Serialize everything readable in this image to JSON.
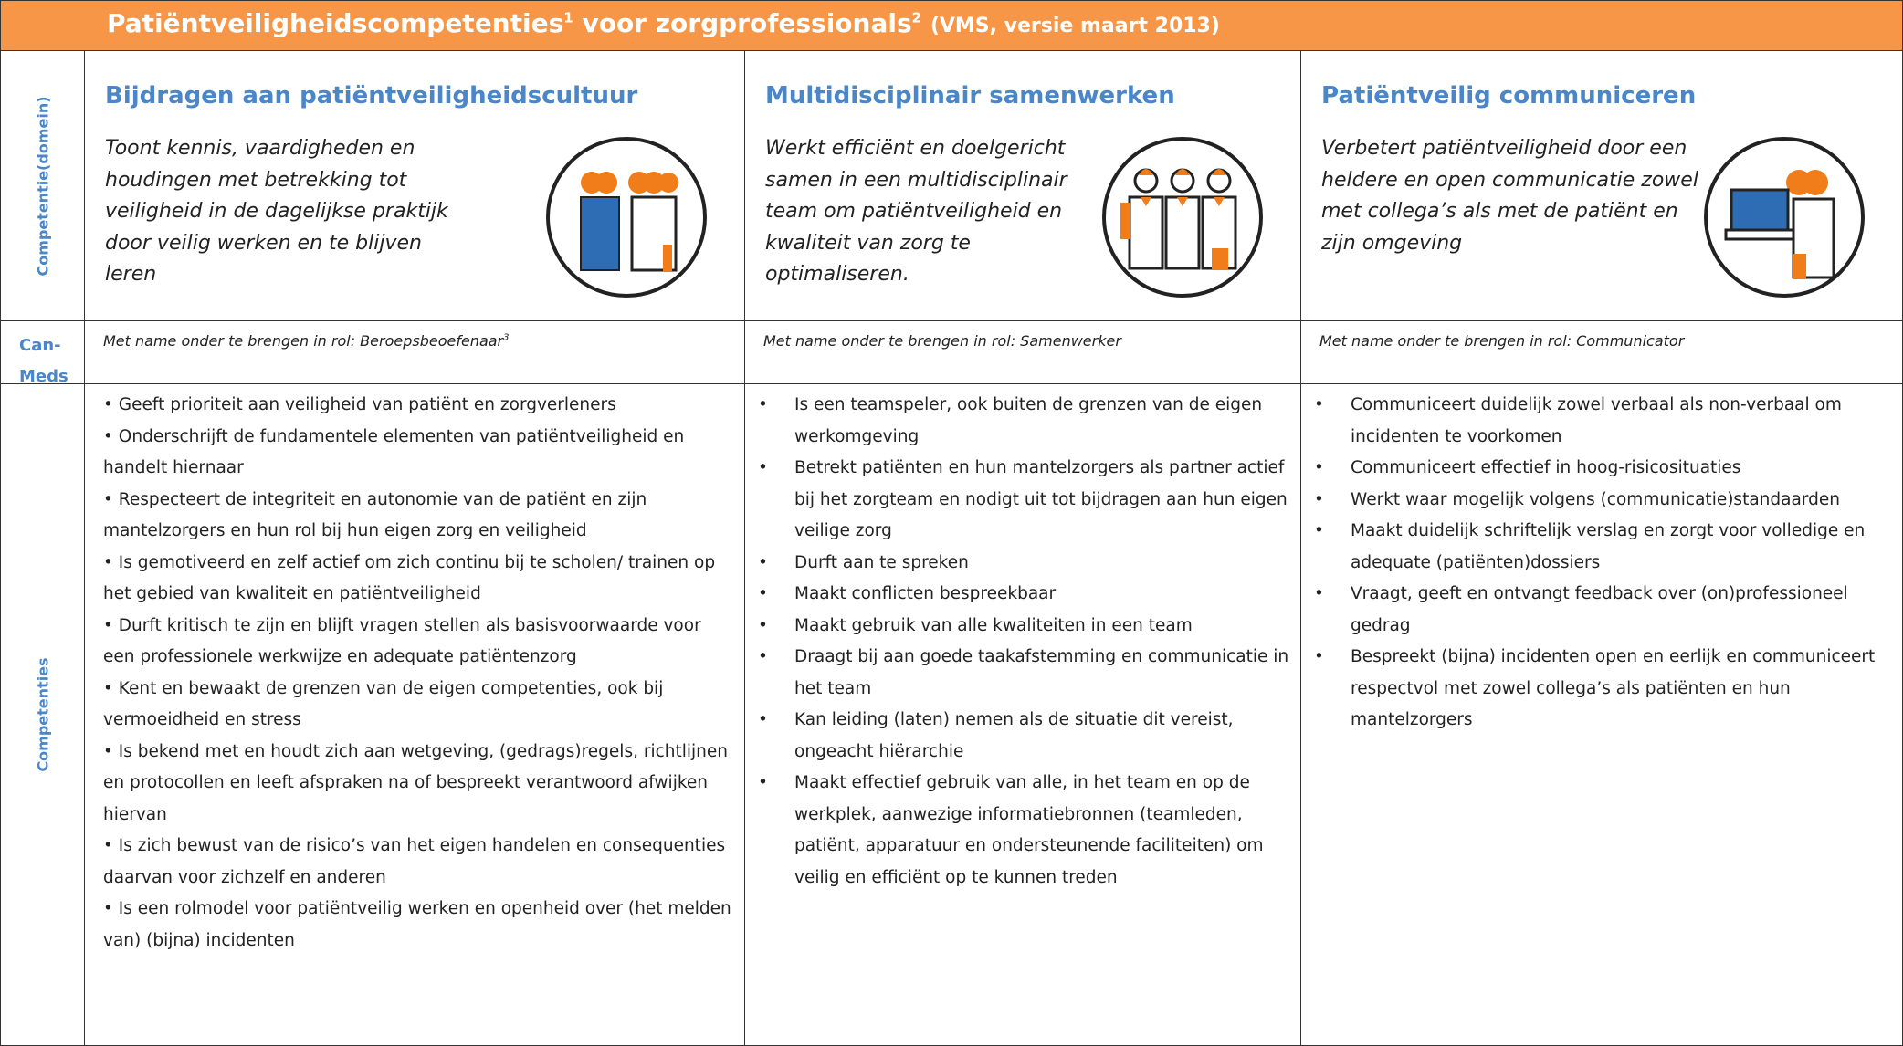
{
  "header": {
    "title": "Patiëntveiligheidscompetenties",
    "title_sup1": "1",
    "title_middle": "voor zorgprofessionals",
    "title_sup2": "2",
    "title_note": "(VMS, versie maart 2013)"
  },
  "row_labels": {
    "domain": "Competentie(domein)",
    "canmeds": "Can-Meds",
    "competencies": "Competenties"
  },
  "columns": [
    {
      "heading": "Bijdragen aan patiëntveiligheidscultuur",
      "description": "Toont kennis, vaardigheden en houdingen met betrekking tot veiligheid in de dagelijkse praktijk door veilig werken en te blijven leren",
      "canmeds_role": "Met name onder te brengen in rol: Beroepsbeoefenaar",
      "canmeds_sup": "3",
      "competencies": [
        "Geeft prioriteit aan veiligheid van patiënt en zorgverleners",
        "Onderschrijft de fundamentele elementen van patiëntveiligheid en handelt hiernaar",
        "Respecteert de integriteit en autonomie van de patiënt en zijn mantelzorgers en hun rol bij hun eigen zorg en veiligheid",
        "Is gemotiveerd en zelf actief om zich continu bij te scholen/ trainen op het gebied van kwaliteit en patiëntveiligheid",
        "Durft kritisch te zijn en blijft vragen stellen als basisvoorwaarde voor een professionele werkwijze en adequate patiëntenzorg",
        "Kent en bewaakt de grenzen van de eigen competenties, ook bij vermoeidheid en stress",
        "Is bekend met en houdt zich aan wetgeving, (gedrags)regels, richtlijnen en protocollen en leeft afspraken na of bespreekt verantwoord afwijken hiervan",
        "Is zich bewust van de risico’s van het eigen handelen en consequenties daarvan voor zichzelf en anderen",
        "Is een rolmodel voor patiëntveilig werken en openheid over (het melden van) (bijna) incidenten"
      ]
    },
    {
      "heading": "Multidisciplinair samenwerken",
      "description": "Werkt efficiënt en doelgericht samen in een multidisciplinair team om patiëntveiligheid en kwaliteit van zorg te optimaliseren.",
      "canmeds_role": "Met name onder te brengen in rol: Samenwerker",
      "competencies": [
        "Is een teamspeler, ook buiten de grenzen van de eigen werkomgeving",
        "Betrekt patiënten en hun mantelzorgers als partner actief bij het zorgteam en nodigt uit tot bijdragen aan hun eigen veilige zorg",
        "Durft aan te spreken",
        "Maakt conflicten bespreekbaar",
        "Maakt gebruik van alle kwaliteiten in een team",
        "Draagt bij aan goede taakafstemming en communicatie in het team",
        "Kan leiding (laten) nemen als de situatie dit vereist, ongeacht hiërarchie",
        "Maakt effectief gebruik van alle, in het team en op de werkplek, aanwezige informatiebronnen (teamleden, patiënt, apparatuur en ondersteunende faciliteiten) om veilig en efficiënt op te kunnen treden"
      ]
    },
    {
      "heading": "Patiëntveilig communiceren",
      "description": "Verbetert patiëntveiligheid door een heldere en open communicatie zowel met collega’s als met de patiënt en zijn omgeving",
      "canmeds_role": "Met name onder te brengen in rol: Communicator",
      "competencies": [
        "Communiceert duidelijk zowel verbaal als non-verbaal om incidenten te voorkomen",
        "Communiceert effectief in hoog-risicosituaties",
        "Werkt waar mogelijk volgens (communicatie)standaarden",
        "Maakt duidelijk schriftelijk verslag en zorgt voor volledige en adequate (patiënten)dossiers",
        "Vraagt, geeft en ontvangt feedback over (on)professioneel gedrag",
        "Bespreekt (bijna) incidenten open en eerlijk en communiceert respectvol met zowel collega’s als patiënten en hun mantelzorgers"
      ]
    }
  ]
}
